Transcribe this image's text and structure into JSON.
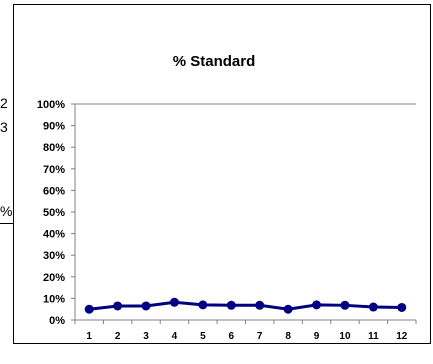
{
  "left_clipped_text": [
    "2",
    "3",
    "%"
  ],
  "chart_data": {
    "type": "line",
    "title": "% Standard",
    "xlabel": "",
    "ylabel": "",
    "categories": [
      "1",
      "2",
      "3",
      "4",
      "5",
      "6",
      "7",
      "8",
      "9",
      "10",
      "11",
      "12"
    ],
    "series": [
      {
        "values": [
          0.05,
          0.065,
          0.065,
          0.082,
          0.07,
          0.068,
          0.068,
          0.05,
          0.07,
          0.068,
          0.06,
          0.058
        ],
        "color": "#000080"
      }
    ],
    "ylim": [
      0,
      1
    ],
    "yticks": [
      0,
      0.1,
      0.2,
      0.3,
      0.4,
      0.5,
      0.6,
      0.7,
      0.8,
      0.9,
      1.0
    ],
    "ytick_labels": [
      "0%",
      "10%",
      "20%",
      "30%",
      "40%",
      "50%",
      "60%",
      "70%",
      "80%",
      "90%",
      "100%"
    ],
    "grid": false,
    "legend": "none"
  }
}
